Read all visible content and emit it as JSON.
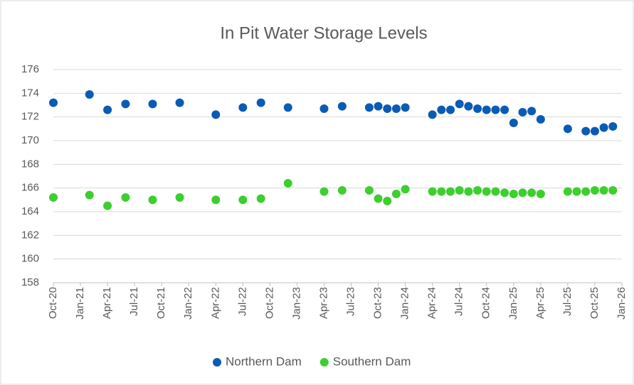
{
  "chart_data": {
    "type": "scatter",
    "title": "In Pit Water Storage Levels",
    "series": [
      {
        "name": "Northern Dam",
        "color": "#0a5bb5",
        "x": [
          "2020-10",
          "2021-02",
          "2021-04",
          "2021-06",
          "2021-09",
          "2021-12",
          "2022-04",
          "2022-07",
          "2022-09",
          "2022-12",
          "2023-04",
          "2023-06",
          "2023-09",
          "2023-10",
          "2023-11",
          "2023-12",
          "2024-01",
          "2024-04",
          "2024-05",
          "2024-06",
          "2024-07",
          "2024-08",
          "2024-09",
          "2024-10",
          "2024-11",
          "2024-12",
          "2025-01",
          "2025-02",
          "2025-03",
          "2025-04",
          "2025-07",
          "2025-09",
          "2025-10",
          "2025-11",
          "2025-12"
        ],
        "values": [
          173.2,
          173.9,
          172.6,
          173.1,
          173.1,
          173.2,
          172.2,
          172.8,
          173.2,
          172.8,
          172.7,
          172.9,
          172.8,
          172.9,
          172.7,
          172.7,
          172.8,
          172.2,
          172.6,
          172.6,
          173.1,
          172.9,
          172.7,
          172.6,
          172.6,
          172.6,
          171.5,
          172.4,
          172.5,
          171.8,
          171.0,
          170.8,
          170.8,
          171.1,
          171.2
        ]
      },
      {
        "name": "Southern Dam",
        "color": "#3ccf2e",
        "x": [
          "2020-10",
          "2021-02",
          "2021-04",
          "2021-06",
          "2021-09",
          "2021-12",
          "2022-04",
          "2022-07",
          "2022-09",
          "2022-12",
          "2023-04",
          "2023-06",
          "2023-09",
          "2023-10",
          "2023-11",
          "2023-12",
          "2024-01",
          "2024-04",
          "2024-05",
          "2024-06",
          "2024-07",
          "2024-08",
          "2024-09",
          "2024-10",
          "2024-11",
          "2024-12",
          "2025-01",
          "2025-02",
          "2025-03",
          "2025-04",
          "2025-07",
          "2025-08",
          "2025-09",
          "2025-10",
          "2025-11",
          "2025-12"
        ],
        "values": [
          165.2,
          165.4,
          164.5,
          165.2,
          165.0,
          165.2,
          165.0,
          165.0,
          165.1,
          166.4,
          165.7,
          165.8,
          165.8,
          165.1,
          164.9,
          165.5,
          165.9,
          165.7,
          165.7,
          165.7,
          165.8,
          165.7,
          165.8,
          165.7,
          165.7,
          165.6,
          165.5,
          165.6,
          165.6,
          165.5,
          165.7,
          165.7,
          165.7,
          165.8,
          165.8,
          165.8
        ]
      }
    ],
    "xlim": [
      "2020-10",
      "2026-01"
    ],
    "xticks": [
      {
        "value": "2020-10",
        "label": "Oct-20"
      },
      {
        "value": "2021-01",
        "label": "Jan-21"
      },
      {
        "value": "2021-04",
        "label": "Apr-21"
      },
      {
        "value": "2021-07",
        "label": "Jul-21"
      },
      {
        "value": "2021-10",
        "label": "Oct-21"
      },
      {
        "value": "2022-01",
        "label": "Jan-22"
      },
      {
        "value": "2022-04",
        "label": "Apr-22"
      },
      {
        "value": "2022-07",
        "label": "Jul-22"
      },
      {
        "value": "2022-10",
        "label": "Oct-22"
      },
      {
        "value": "2023-01",
        "label": "Jan-23"
      },
      {
        "value": "2023-04",
        "label": "Apr-23"
      },
      {
        "value": "2023-07",
        "label": "Jul-23"
      },
      {
        "value": "2023-10",
        "label": "Oct-23"
      },
      {
        "value": "2024-01",
        "label": "Jan-24"
      },
      {
        "value": "2024-04",
        "label": "Apr-24"
      },
      {
        "value": "2024-07",
        "label": "Jul-24"
      },
      {
        "value": "2024-10",
        "label": "Oct-24"
      },
      {
        "value": "2025-01",
        "label": "Jan-25"
      },
      {
        "value": "2025-04",
        "label": "Apr-25"
      },
      {
        "value": "2025-07",
        "label": "Jul-25"
      },
      {
        "value": "2025-10",
        "label": "Oct-25"
      },
      {
        "value": "2026-01",
        "label": "Jan-26"
      }
    ],
    "ylim": [
      158,
      176
    ],
    "yticks": [
      158,
      160,
      162,
      164,
      166,
      168,
      170,
      172,
      174,
      176
    ],
    "grid": true,
    "legend": "bottom"
  }
}
